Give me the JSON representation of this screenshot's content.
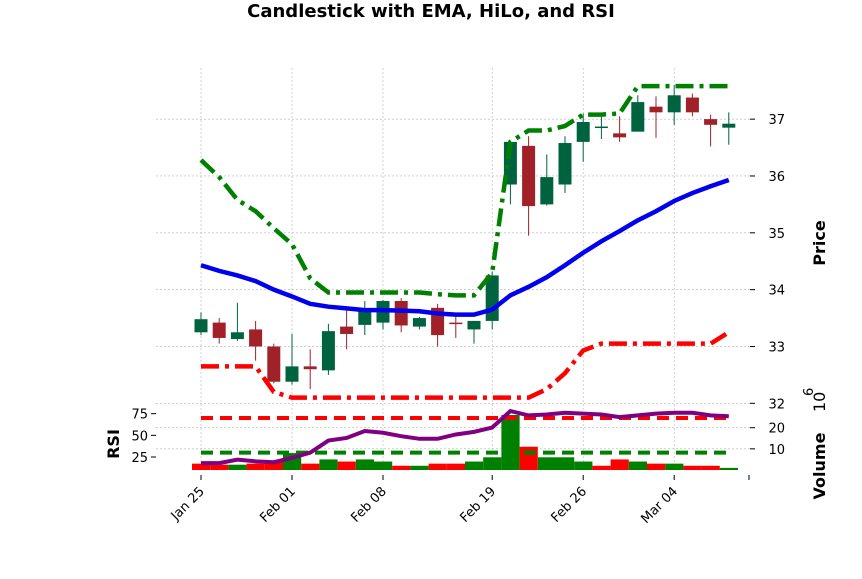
{
  "chart_data": {
    "type": "candlestick",
    "title": "Candlestick with EMA, HiLo, and RSI",
    "price_axis": {
      "label": "Price",
      "ylim": [
        31.9,
        37.9
      ],
      "ticks": [
        32,
        33,
        34,
        35,
        36,
        37
      ]
    },
    "volume_axis": {
      "label": "Volume",
      "exponent_label": "10",
      "exponent": "6",
      "ylim": [
        0,
        26
      ],
      "ticks": [
        10,
        20
      ]
    },
    "rsi_axis": {
      "label": "RSI",
      "ylim": [
        10,
        85
      ],
      "ticks": [
        25,
        50,
        75
      ]
    },
    "x_ticks": [
      {
        "index": 0,
        "label": "Jan 25"
      },
      {
        "index": 5,
        "label": "Feb 01"
      },
      {
        "index": 10,
        "label": "Feb 08"
      },
      {
        "index": 16,
        "label": "Feb 19"
      },
      {
        "index": 21,
        "label": "Feb 26"
      },
      {
        "index": 26,
        "label": "Mar 04"
      }
    ],
    "candles": [
      {
        "o": 33.25,
        "h": 33.6,
        "l": 33.2,
        "c": 33.48
      },
      {
        "o": 33.42,
        "h": 33.5,
        "l": 33.05,
        "c": 33.15
      },
      {
        "o": 33.13,
        "h": 33.77,
        "l": 33.1,
        "c": 33.25
      },
      {
        "o": 33.3,
        "h": 33.45,
        "l": 32.75,
        "c": 33.0
      },
      {
        "o": 33.0,
        "h": 33.05,
        "l": 32.35,
        "c": 32.38
      },
      {
        "o": 32.38,
        "h": 33.22,
        "l": 32.33,
        "c": 32.65
      },
      {
        "o": 32.65,
        "h": 32.95,
        "l": 32.25,
        "c": 32.6
      },
      {
        "o": 32.58,
        "h": 33.4,
        "l": 32.5,
        "c": 33.27
      },
      {
        "o": 33.35,
        "h": 33.65,
        "l": 32.95,
        "c": 33.22
      },
      {
        "o": 33.38,
        "h": 33.8,
        "l": 33.2,
        "c": 33.65
      },
      {
        "o": 33.42,
        "h": 33.82,
        "l": 33.3,
        "c": 33.8
      },
      {
        "o": 33.8,
        "h": 33.85,
        "l": 33.25,
        "c": 33.37
      },
      {
        "o": 33.35,
        "h": 33.52,
        "l": 33.3,
        "c": 33.5
      },
      {
        "o": 33.68,
        "h": 33.75,
        "l": 33.0,
        "c": 33.2
      },
      {
        "o": 33.42,
        "h": 33.52,
        "l": 33.15,
        "c": 33.4
      },
      {
        "o": 33.3,
        "h": 33.45,
        "l": 33.05,
        "c": 33.45
      },
      {
        "o": 33.45,
        "h": 34.32,
        "l": 33.3,
        "c": 34.25
      },
      {
        "o": 35.85,
        "h": 36.6,
        "l": 35.5,
        "c": 36.6
      },
      {
        "o": 36.53,
        "h": 36.7,
        "l": 34.95,
        "c": 35.47
      },
      {
        "o": 35.5,
        "h": 36.38,
        "l": 35.48,
        "c": 35.98
      },
      {
        "o": 35.85,
        "h": 36.7,
        "l": 35.7,
        "c": 36.58
      },
      {
        "o": 36.6,
        "h": 37.1,
        "l": 36.25,
        "c": 36.95
      },
      {
        "o": 36.85,
        "h": 37.08,
        "l": 36.65,
        "c": 36.87
      },
      {
        "o": 36.75,
        "h": 37.05,
        "l": 36.6,
        "c": 36.68
      },
      {
        "o": 36.78,
        "h": 37.42,
        "l": 36.78,
        "c": 37.3
      },
      {
        "o": 37.22,
        "h": 37.4,
        "l": 36.67,
        "c": 37.12
      },
      {
        "o": 37.12,
        "h": 37.6,
        "l": 36.9,
        "c": 37.42
      },
      {
        "o": 37.38,
        "h": 37.45,
        "l": 37.05,
        "c": 37.12
      },
      {
        "o": 37.0,
        "h": 37.08,
        "l": 36.52,
        "c": 36.9
      },
      {
        "o": 36.85,
        "h": 37.12,
        "l": 36.55,
        "c": 36.92
      }
    ],
    "series": [
      {
        "type": "line",
        "style": "solid",
        "color": "#0000ee",
        "values": [
          34.43,
          34.33,
          34.25,
          34.15,
          34.0,
          33.88,
          33.75,
          33.7,
          33.67,
          33.64,
          33.64,
          33.63,
          33.62,
          33.58,
          33.56,
          33.56,
          33.65,
          33.9,
          34.05,
          34.22,
          34.43,
          34.65,
          34.85,
          35.03,
          35.22,
          35.38,
          35.56,
          35.7,
          35.82,
          35.93
        ]
      },
      {
        "type": "line",
        "style": "dash-dot",
        "color": "#008000",
        "values": [
          36.28,
          35.98,
          35.58,
          35.38,
          35.08,
          34.8,
          34.2,
          33.95,
          33.95,
          33.95,
          33.95,
          33.95,
          33.95,
          33.92,
          33.9,
          33.9,
          34.3,
          36.6,
          36.8,
          36.8,
          36.88,
          37.08,
          37.08,
          37.1,
          37.58,
          37.58,
          37.58,
          37.58,
          37.58,
          37.58
        ]
      },
      {
        "type": "line",
        "style": "dash-dot",
        "color": "#ff0000",
        "values": [
          32.65,
          32.65,
          32.65,
          32.65,
          32.2,
          32.1,
          32.1,
          32.1,
          32.1,
          32.1,
          32.1,
          32.1,
          32.1,
          32.1,
          32.1,
          32.1,
          32.1,
          32.1,
          32.1,
          32.25,
          32.53,
          32.93,
          33.05,
          33.05,
          33.05,
          33.05,
          33.05,
          33.05,
          33.05,
          33.25
        ]
      },
      {
        "type": "rsi",
        "color": "#800080",
        "values": [
          18,
          18,
          22,
          20,
          19,
          24,
          30,
          44,
          47,
          55,
          53,
          49,
          46,
          46,
          51,
          54,
          59,
          78,
          73,
          74,
          76,
          75,
          74,
          71,
          73,
          75,
          76,
          76,
          73,
          72
        ]
      },
      {
        "type": "rsi-threshold",
        "style": "dashed",
        "color": "#ff0000",
        "value": 70
      },
      {
        "type": "rsi-threshold",
        "style": "dashed",
        "color": "#008000",
        "value": 30
      }
    ],
    "volume": {
      "up_color": "#008000",
      "down_color": "#ff0000",
      "values": [
        3,
        2.5,
        2.5,
        3,
        4,
        8,
        3,
        5,
        4,
        5,
        4,
        2,
        2,
        3,
        3,
        4,
        6,
        26,
        11,
        6,
        6,
        4,
        2,
        5,
        4,
        3,
        3,
        2,
        2,
        1
      ],
      "up": [
        false,
        false,
        true,
        false,
        false,
        true,
        false,
        true,
        false,
        true,
        true,
        false,
        true,
        false,
        false,
        true,
        true,
        true,
        false,
        true,
        true,
        true,
        false,
        false,
        true,
        false,
        true,
        false,
        false,
        true
      ]
    }
  }
}
